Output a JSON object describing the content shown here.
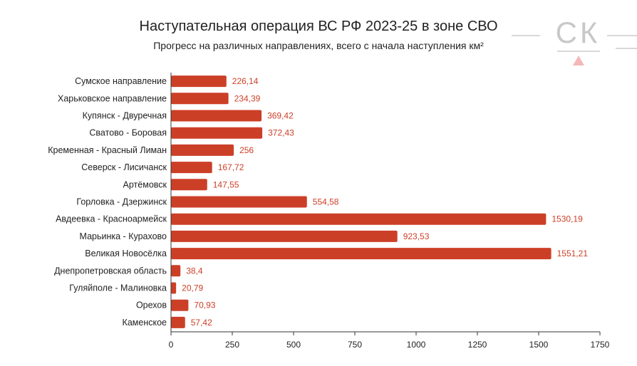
{
  "chart_data": {
    "type": "bar",
    "orientation": "horizontal",
    "title": "Наступательная операция ВС РФ 2023-25 в зоне СВО",
    "subtitle": "Прогресс на различных направлениях, всего с начала наступления км²",
    "categories": [
      "Сумское направление",
      "Харьковское направление",
      "Купянск - Двуречная",
      "Сватово - Боровая",
      "Кременная - Красный Лиман",
      "Северск - Лисичанск",
      "Артёмовск",
      "Горловка - Дзержинск",
      "Авдеевка - Красноармейск",
      "Марьинка - Курахово",
      "Великая Новосёлка",
      "Днепропетровская область",
      "Гуляйполе - Малиновка",
      "Орехов",
      "Каменское"
    ],
    "values": [
      226.14,
      234.39,
      369.42,
      372.43,
      256,
      167.72,
      147.55,
      554.58,
      1530.19,
      923.53,
      1551.21,
      38.4,
      20.79,
      70.93,
      57.42
    ],
    "value_labels": [
      "226,14",
      "234,39",
      "369,42",
      "372,43",
      "256",
      "167,72",
      "147,55",
      "554,58",
      "1530,19",
      "923,53",
      "1551,21",
      "38,4",
      "20,79",
      "70,93",
      "57,42"
    ],
    "xlim": [
      0,
      1750
    ],
    "xticks": [
      "0",
      "250",
      "500",
      "750",
      "1000",
      "1250",
      "1500",
      "1750"
    ],
    "grid": false,
    "bar_color": "#cc3f27",
    "label_color": "#cc3f27"
  },
  "logo": {
    "text": "СК",
    "color": "#c8c8c8",
    "accent": "#f4b8b8"
  }
}
